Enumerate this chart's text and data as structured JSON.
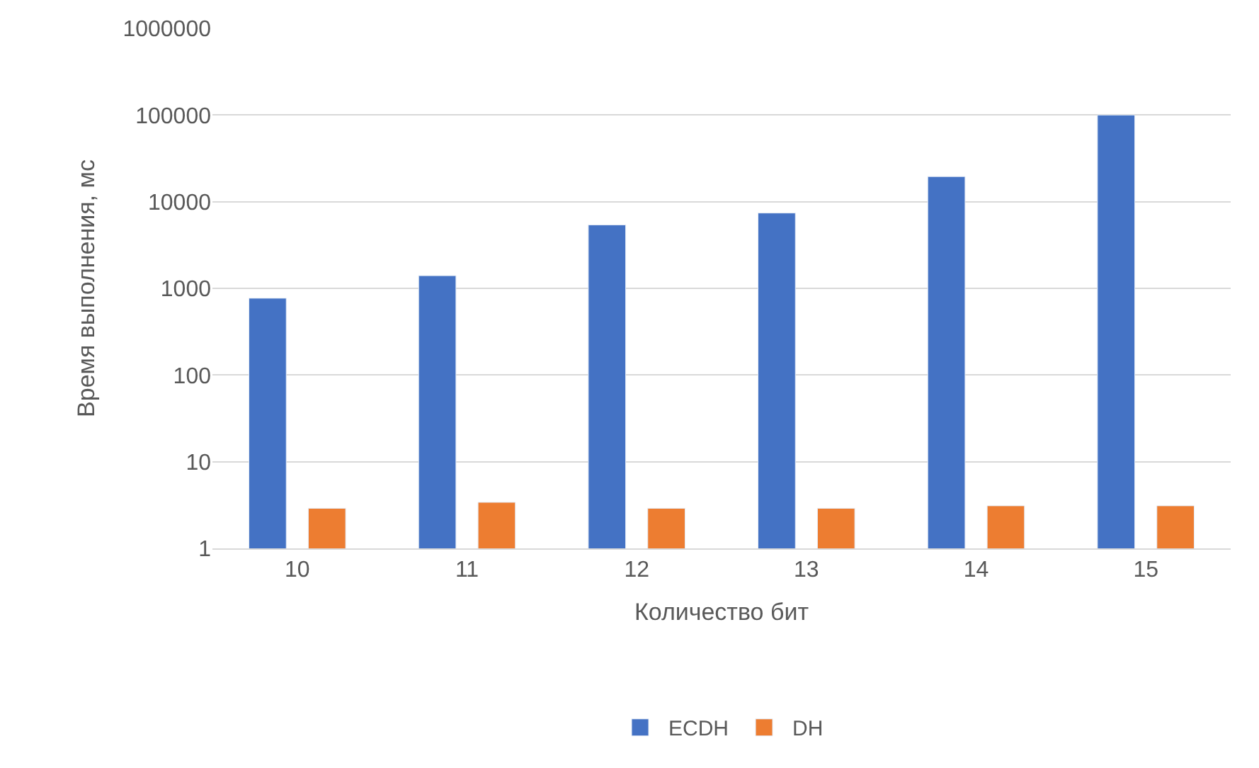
{
  "chart_data": {
    "type": "bar",
    "xlabel": "Количество бит",
    "ylabel": "Время выполнения, мс",
    "categories": [
      "10",
      "11",
      "12",
      "13",
      "14",
      "15"
    ],
    "series": [
      {
        "name": "ECDH",
        "color": "#4472c4",
        "values": [
          770,
          1400,
          5400,
          7400,
          19500,
          100000
        ]
      },
      {
        "name": "DH",
        "color": "#ed7d31",
        "values": [
          2.9,
          3.4,
          2.9,
          2.9,
          3.1,
          3.1
        ]
      }
    ],
    "log": true,
    "ylim": [
      1,
      1000000
    ],
    "yticks": [
      1,
      10,
      100,
      1000,
      10000,
      100000,
      1000000
    ],
    "grid": "y",
    "legend": "bottom"
  }
}
